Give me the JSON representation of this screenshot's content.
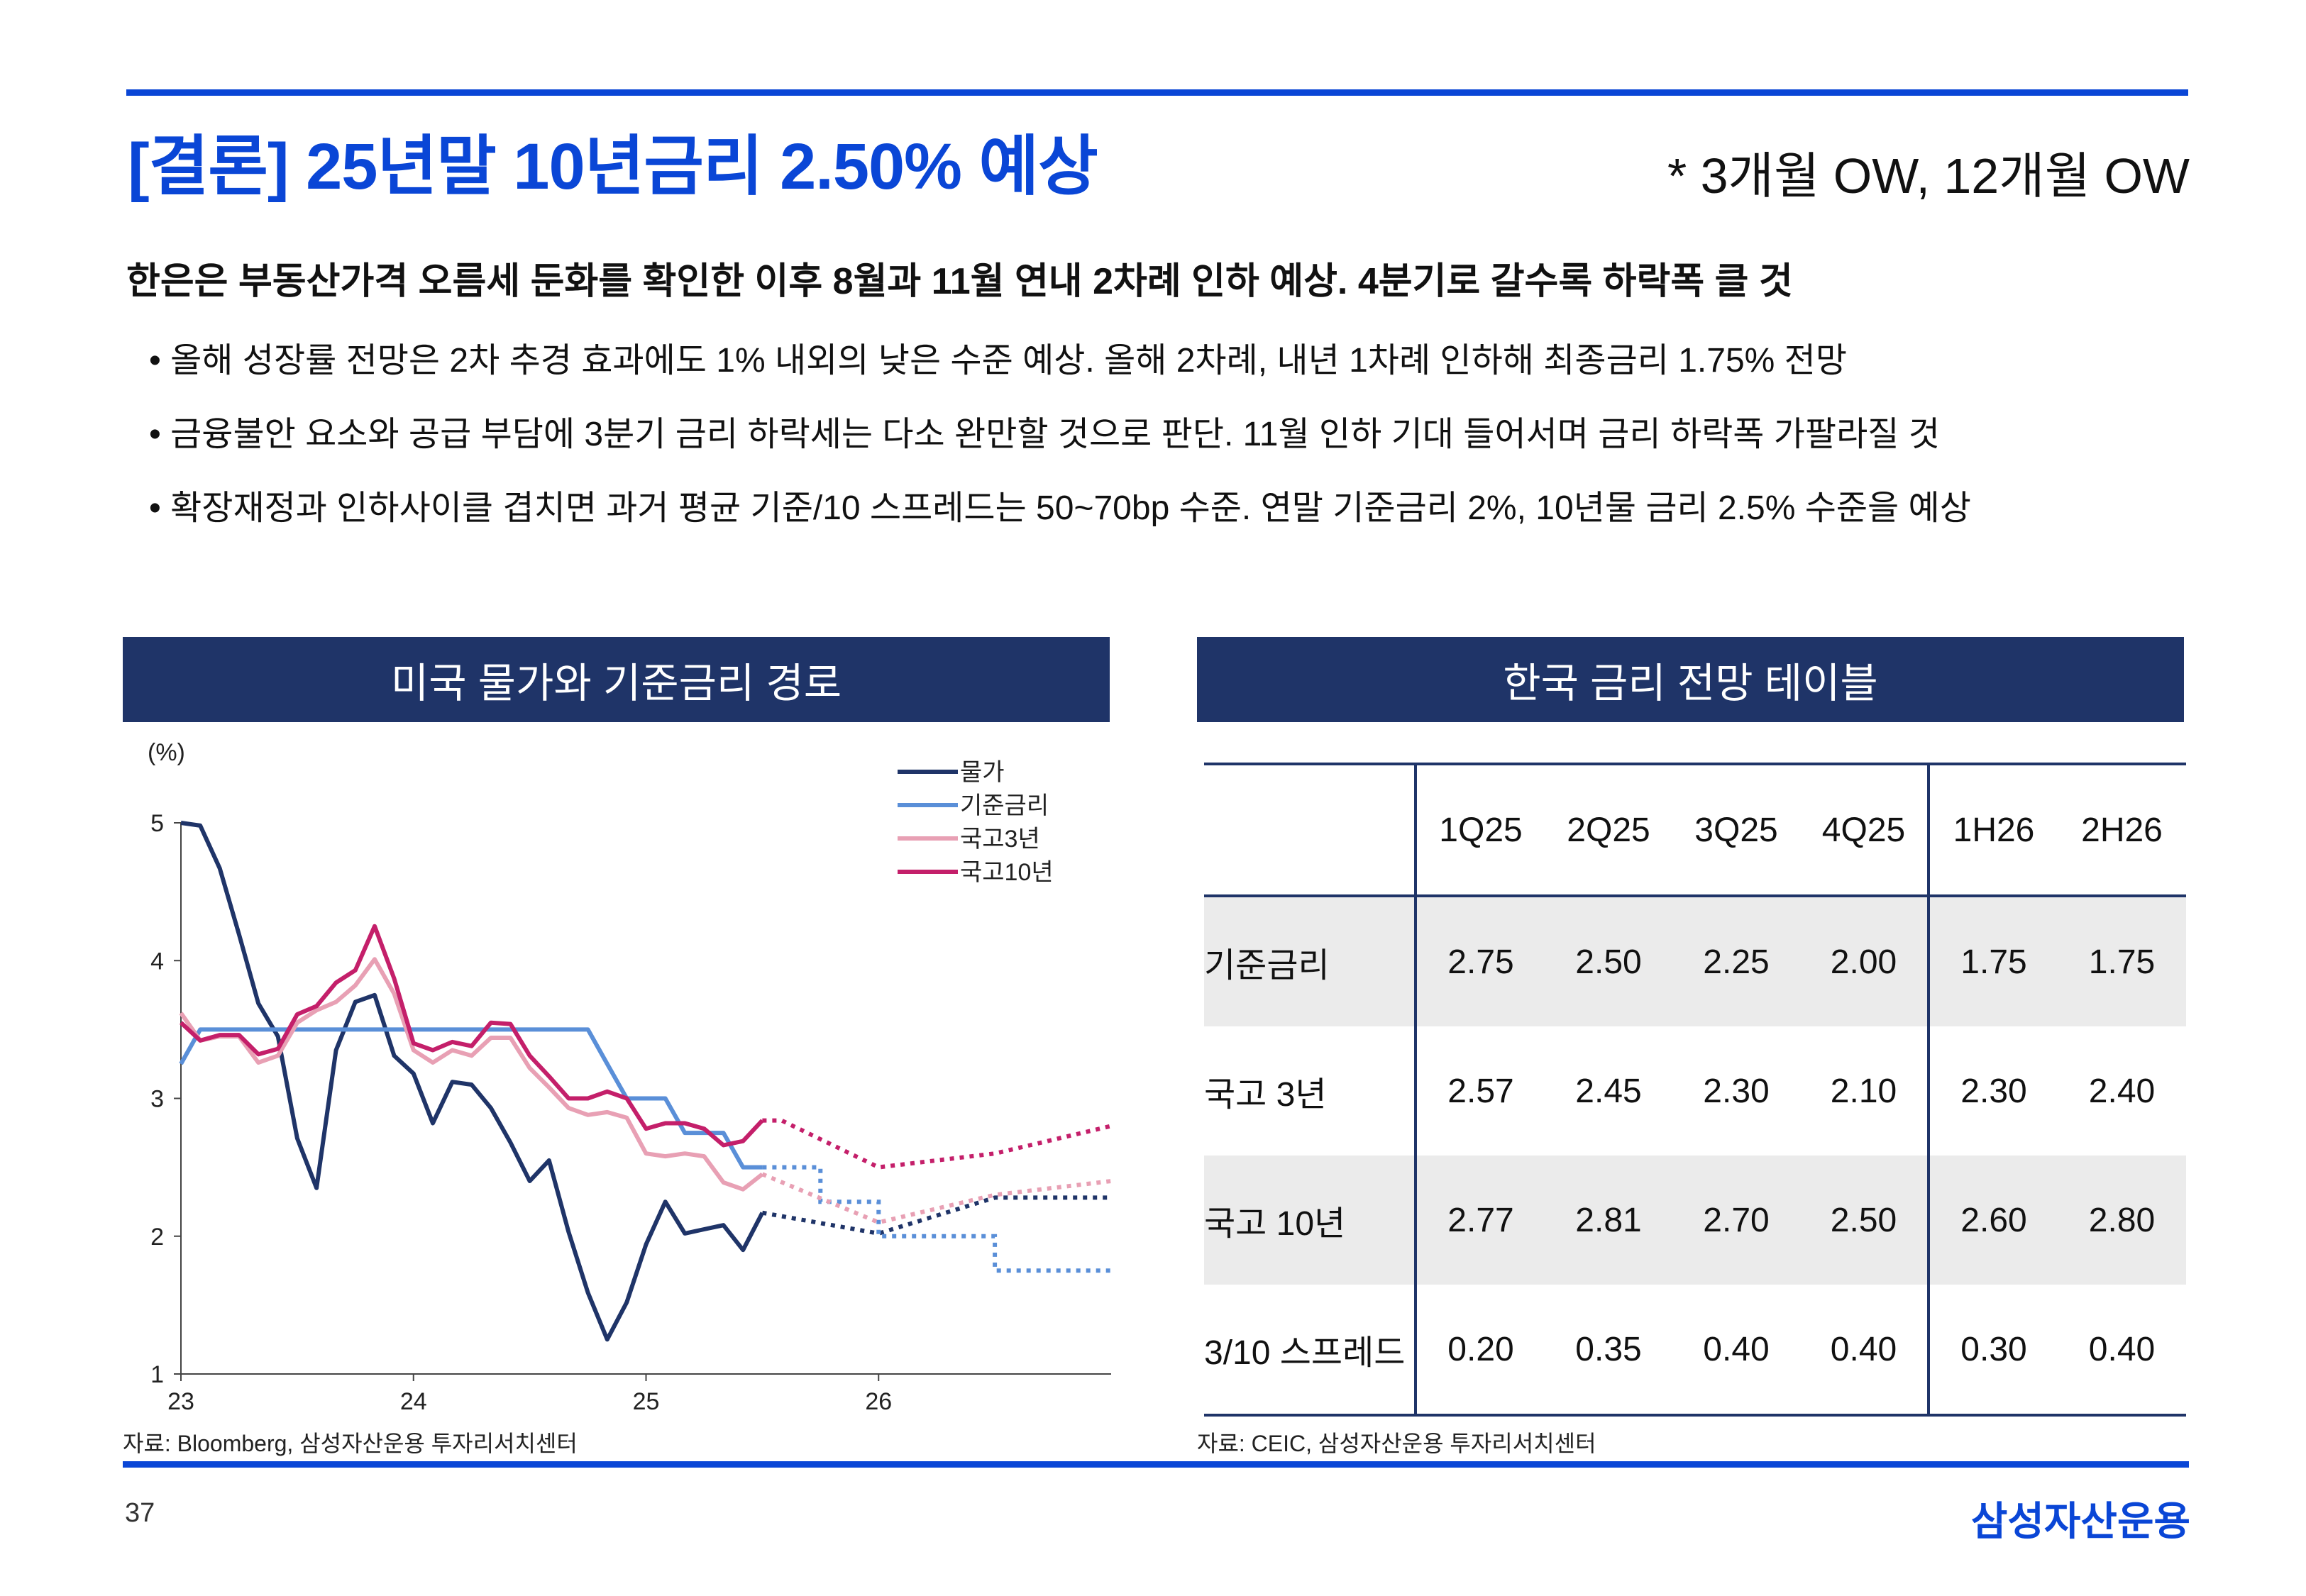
{
  "title": "[결론] 25년말 10년금리 2.50% 예상",
  "subtag": "* 3개월 OW, 12개월 OW",
  "headline": "한은은 부동산가격 오름세 둔화를 확인한 이후 8월과 11월 연내 2차례 인하 예상. 4분기로 갈수록 하락폭 클 것",
  "bullets": [
    "• 올해 성장률 전망은 2차 추경 효과에도 1% 내외의 낮은 수준 예상. 올해 2차례, 내년 1차례 인하해 최종금리 1.75% 전망",
    "• 금융불안 요소와 공급 부담에 3분기 금리 하락세는 다소 완만할 것으로 판단. 11월 인하 기대 들어서며 금리 하락폭 가팔라질 것",
    "• 확장재정과 인하사이클 겹치면 과거 평균 기준/10 스프레드는 50~70bp 수준. 연말 기준금리 2%, 10년물 금리 2.5% 수준을 예상"
  ],
  "left_panel": {
    "title": "미국 물가와 기준금리 경로",
    "source": "자료: Bloomberg, 삼성자산운용 투자리서치센터"
  },
  "right_panel": {
    "title": "한국 금리 전망 테이블",
    "source": "자료: CEIC, 삼성자산운용 투자리서치센터"
  },
  "page_number": "37",
  "brand": "삼성자산운용",
  "colors": {
    "accent": "#0a46d6",
    "panel": "#1f3468"
  },
  "chart_data": [
    {
      "type": "line",
      "unit_label": "(%)",
      "ylim": [
        1,
        5
      ],
      "y_ticks": [
        "1",
        "2",
        "3",
        "4",
        "5"
      ],
      "xlim": [
        23,
        27
      ],
      "x_ticks": [
        "23",
        "24",
        "25",
        "26"
      ],
      "grid": false,
      "legend_position": "top-right",
      "series": [
        {
          "name": "물가",
          "color": "#1f3468",
          "x": [
            23.0,
            23.083,
            23.167,
            23.25,
            23.333,
            23.417,
            23.5,
            23.583,
            23.667,
            23.75,
            23.833,
            23.917,
            24.0,
            24.083,
            24.167,
            24.25,
            24.333,
            24.417,
            24.5,
            24.583,
            24.667,
            24.75,
            24.833,
            24.917,
            25.0,
            25.083,
            25.167,
            25.25,
            25.333,
            25.417,
            25.5
          ],
          "y": [
            5.0,
            4.98,
            4.67,
            4.19,
            3.69,
            3.45,
            2.71,
            2.35,
            3.35,
            3.7,
            3.75,
            3.31,
            3.18,
            2.82,
            3.12,
            3.1,
            2.93,
            2.68,
            2.4,
            2.55,
            2.03,
            1.59,
            1.25,
            1.52,
            1.94,
            2.25,
            2.02,
            2.05,
            2.08,
            1.9,
            2.17
          ],
          "forecast": {
            "x": [
              25.5,
              26.0,
              26.5,
              27.0
            ],
            "y": [
              2.17,
              2.02,
              2.28,
              2.28
            ]
          }
        },
        {
          "name": "기준금리",
          "color": "#5a8fd8",
          "x": [
            23.0,
            23.083,
            23.75,
            24.5,
            24.583,
            24.667,
            24.75,
            24.833,
            24.917,
            25.0,
            25.083,
            25.167,
            25.25,
            25.333,
            25.417,
            25.5
          ],
          "y": [
            3.25,
            3.5,
            3.5,
            3.5,
            3.5,
            3.5,
            3.5,
            3.25,
            3.0,
            3.0,
            3.0,
            2.75,
            2.75,
            2.75,
            2.5,
            2.5
          ],
          "forecast": {
            "x": [
              25.5,
              25.75,
              25.75,
              26.0,
              26.0,
              26.5,
              26.5,
              27.0
            ],
            "y": [
              2.5,
              2.5,
              2.25,
              2.25,
              2.0,
              2.0,
              1.75,
              1.75
            ]
          }
        },
        {
          "name": "국고3년",
          "color": "#e8a0b4",
          "x": [
            23.0,
            23.083,
            23.167,
            23.25,
            23.333,
            23.417,
            23.5,
            23.583,
            23.667,
            23.75,
            23.833,
            23.917,
            24.0,
            24.083,
            24.167,
            24.25,
            24.333,
            24.417,
            24.5,
            24.583,
            24.667,
            24.75,
            24.833,
            24.917,
            25.0,
            25.083,
            25.167,
            25.25,
            25.333,
            25.417,
            25.5
          ],
          "y": [
            3.62,
            3.42,
            3.45,
            3.45,
            3.26,
            3.31,
            3.55,
            3.64,
            3.7,
            3.82,
            4.01,
            3.76,
            3.35,
            3.26,
            3.35,
            3.31,
            3.44,
            3.44,
            3.22,
            3.08,
            2.93,
            2.88,
            2.9,
            2.86,
            2.6,
            2.58,
            2.6,
            2.58,
            2.39,
            2.34,
            2.45
          ],
          "forecast": {
            "x": [
              25.5,
              26.0,
              26.5,
              27.0
            ],
            "y": [
              2.45,
              2.1,
              2.3,
              2.4
            ]
          }
        },
        {
          "name": "국고10년",
          "color": "#c41f6a",
          "x": [
            23.0,
            23.083,
            23.167,
            23.25,
            23.333,
            23.417,
            23.5,
            23.583,
            23.667,
            23.75,
            23.833,
            23.917,
            24.0,
            24.083,
            24.167,
            24.25,
            24.333,
            24.417,
            24.5,
            24.583,
            24.667,
            24.75,
            24.833,
            24.917,
            25.0,
            25.083,
            25.167,
            25.25,
            25.333,
            25.417,
            25.5
          ],
          "y": [
            3.55,
            3.42,
            3.46,
            3.46,
            3.32,
            3.36,
            3.61,
            3.67,
            3.84,
            3.93,
            4.25,
            3.87,
            3.4,
            3.35,
            3.41,
            3.38,
            3.55,
            3.54,
            3.31,
            3.16,
            3.0,
            3.0,
            3.05,
            3.0,
            2.78,
            2.82,
            2.82,
            2.78,
            2.66,
            2.69,
            2.84
          ],
          "forecast": {
            "x": [
              25.5,
              25.583,
              26.0,
              26.5,
              27.0
            ],
            "y": [
              2.84,
              2.84,
              2.5,
              2.6,
              2.8
            ]
          }
        }
      ]
    },
    {
      "type": "table",
      "columns": [
        "1Q25",
        "2Q25",
        "3Q25",
        "4Q25",
        "1H26",
        "2H26"
      ],
      "rows": [
        {
          "label": "기준금리",
          "values": [
            "2.75",
            "2.50",
            "2.25",
            "2.00",
            "1.75",
            "1.75"
          ]
        },
        {
          "label": "국고 3년",
          "values": [
            "2.57",
            "2.45",
            "2.30",
            "2.10",
            "2.30",
            "2.40"
          ]
        },
        {
          "label": "국고 10년",
          "values": [
            "2.77",
            "2.81",
            "2.70",
            "2.50",
            "2.60",
            "2.80"
          ]
        },
        {
          "label": "3/10 스프레드",
          "values": [
            "0.20",
            "0.35",
            "0.40",
            "0.40",
            "0.30",
            "0.40"
          ]
        }
      ]
    }
  ]
}
